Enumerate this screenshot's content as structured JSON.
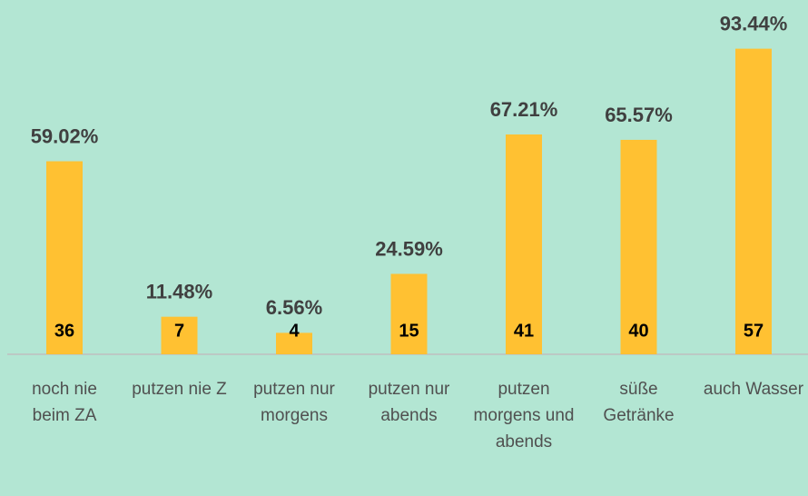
{
  "chart_data": {
    "type": "bar",
    "categories": [
      "noch nie beim ZA",
      "putzen nie Z",
      "putzen nur morgens",
      "putzen nur abends",
      "putzen morgens und abends",
      "süße Getränke",
      "auch Wasser"
    ],
    "values": [
      59.02,
      11.48,
      6.56,
      24.59,
      67.21,
      65.57,
      93.44
    ],
    "value_labels": [
      "59.02%",
      "11.48%",
      "6.56%",
      "24.59%",
      "67.21%",
      "65.57%",
      "93.44%"
    ],
    "counts": [
      36,
      7,
      4,
      15,
      41,
      40,
      57
    ],
    "color": "#ffc132",
    "ylim": [
      0,
      100
    ]
  }
}
